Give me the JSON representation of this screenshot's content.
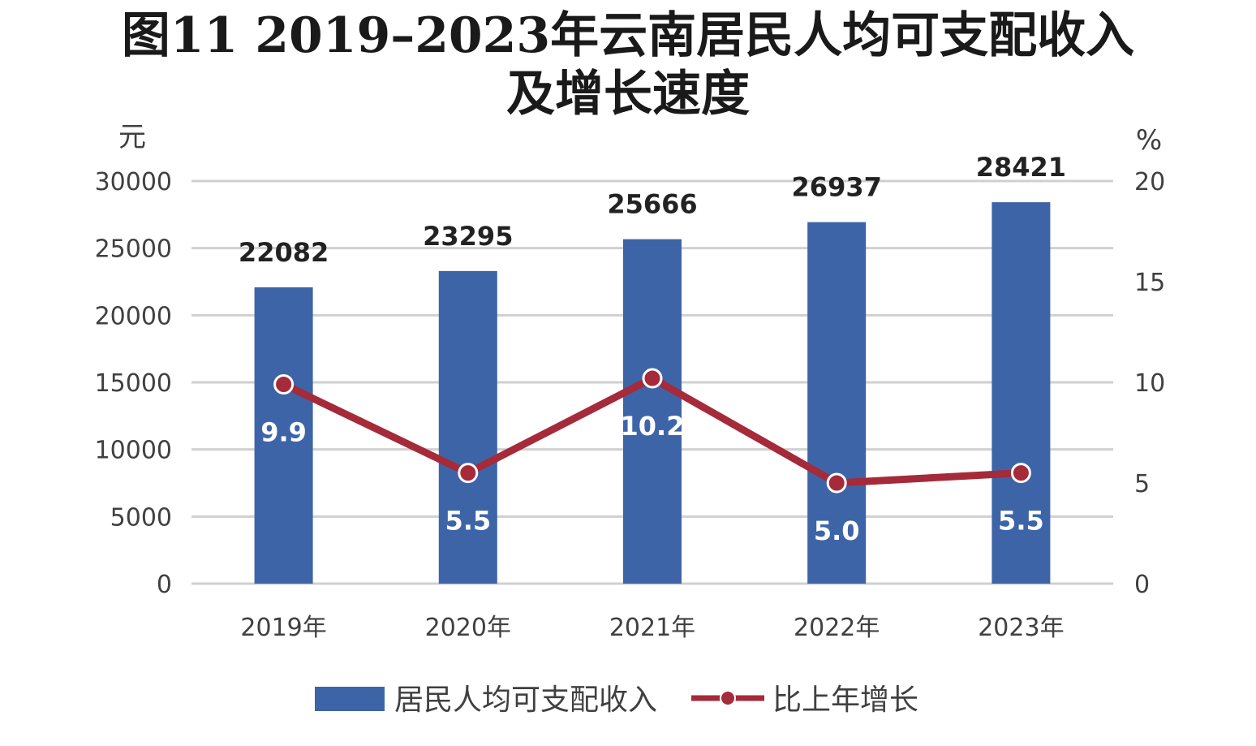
{
  "chart_data": {
    "type": "bar",
    "title_line1": "图11  2019–2023年云南居民人均可支配收入",
    "title_line2": "及增长速度",
    "y_left_unit": "元",
    "y_right_unit": "%",
    "categories": [
      "2019年",
      "2020年",
      "2021年",
      "2022年",
      "2023年"
    ],
    "ylim_left": [
      0,
      30000
    ],
    "yticks_left": [
      "0",
      "5000",
      "10000",
      "15000",
      "20000",
      "25000",
      "30000"
    ],
    "ylim_right": [
      0,
      20
    ],
    "yticks_right": [
      "0",
      "5",
      "10",
      "15",
      "20"
    ],
    "grid": true,
    "legend_position": "bottom",
    "series": [
      {
        "name": "居民人均可支配收入",
        "type": "bar",
        "axis": "left",
        "values": [
          22082,
          23295,
          25666,
          26937,
          28421
        ],
        "labels": [
          "22082",
          "23295",
          "25666",
          "26937",
          "28421"
        ],
        "color": "#3E64A8"
      },
      {
        "name": "比上年增长",
        "type": "line",
        "axis": "right",
        "values": [
          9.9,
          5.5,
          10.2,
          5.0,
          5.5
        ],
        "labels": [
          "9.9",
          "5.5",
          "10.2",
          "5.0",
          "5.5"
        ],
        "color": "#A52A3A"
      }
    ]
  }
}
